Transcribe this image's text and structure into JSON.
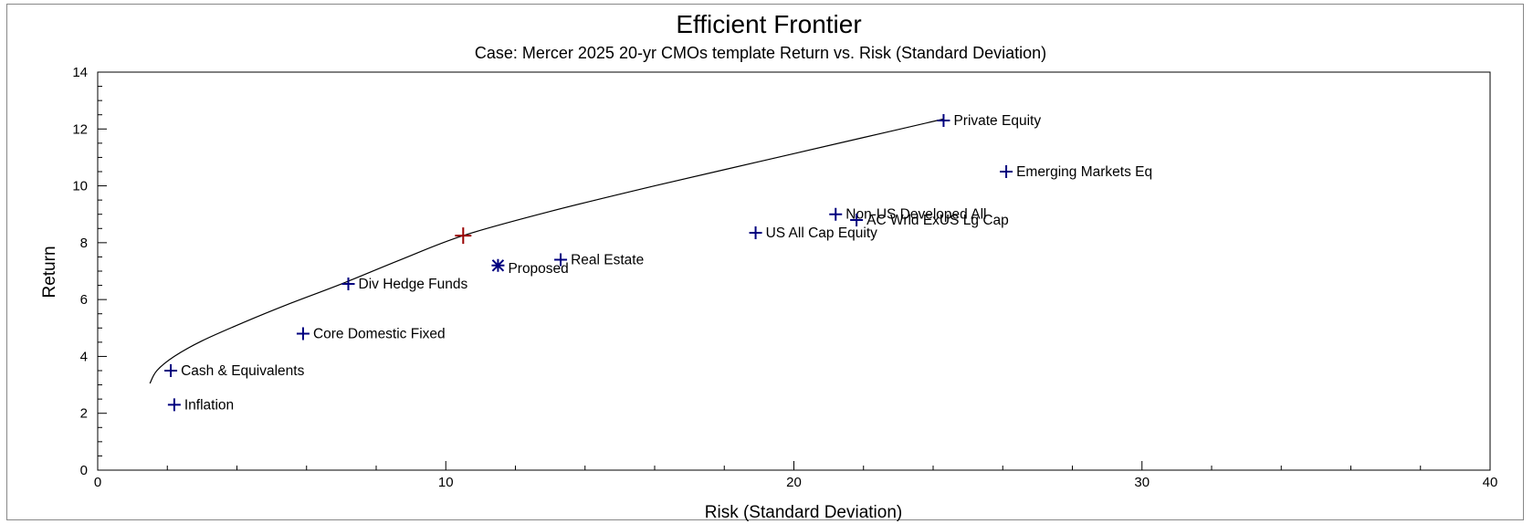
{
  "chart_data": {
    "type": "scatter",
    "title": "Efficient Frontier",
    "subtitle": "Case: Mercer 2025  20-yr CMOs template     Return vs. Risk (Standard Deviation)",
    "xlabel": "Risk (Standard Deviation)",
    "ylabel": "Return",
    "xlim": [
      0,
      40
    ],
    "ylim": [
      0,
      14
    ],
    "x_ticks": [
      0,
      10,
      20,
      30,
      40
    ],
    "y_ticks": [
      0,
      2,
      4,
      6,
      8,
      10,
      12,
      14
    ],
    "grid": false,
    "colors": {
      "points": "#00007f",
      "optimal": "#990000",
      "frontier": "#000000"
    },
    "points": [
      {
        "name": "Private Equity",
        "x": 24.3,
        "y": 12.3
      },
      {
        "name": "Emerging Markets Eq",
        "x": 26.1,
        "y": 10.5
      },
      {
        "name": "Non-US Developed All",
        "x": 21.2,
        "y": 9.0
      },
      {
        "name": "AC Wrld ExUS Lg Cap",
        "x": 21.8,
        "y": 8.8
      },
      {
        "name": "US All Cap Equity",
        "x": 18.9,
        "y": 8.35
      },
      {
        "name": "Real Estate",
        "x": 13.3,
        "y": 7.4
      },
      {
        "name": "Div Hedge Funds",
        "x": 7.2,
        "y": 6.55
      },
      {
        "name": "Core Domestic Fixed",
        "x": 5.9,
        "y": 4.8
      },
      {
        "name": "Cash & Equivalents",
        "x": 2.1,
        "y": 3.5
      },
      {
        "name": "Inflation",
        "x": 2.2,
        "y": 2.3
      }
    ],
    "proposed": {
      "name": "Proposed",
      "x": 11.5,
      "y": 7.2
    },
    "optimal_point": {
      "x": 10.5,
      "y": 8.25
    },
    "frontier": [
      {
        "x": 1.5,
        "y": 3.05
      },
      {
        "x": 1.7,
        "y": 3.5
      },
      {
        "x": 2.2,
        "y": 4.0
      },
      {
        "x": 3.0,
        "y": 4.55
      },
      {
        "x": 4.2,
        "y": 5.2
      },
      {
        "x": 5.5,
        "y": 5.85
      },
      {
        "x": 7.0,
        "y": 6.55
      },
      {
        "x": 8.7,
        "y": 7.4
      },
      {
        "x": 10.5,
        "y": 8.25
      },
      {
        "x": 13.0,
        "y": 9.1
      },
      {
        "x": 16.0,
        "y": 10.0
      },
      {
        "x": 19.0,
        "y": 10.85
      },
      {
        "x": 22.0,
        "y": 11.7
      },
      {
        "x": 24.3,
        "y": 12.35
      }
    ]
  }
}
